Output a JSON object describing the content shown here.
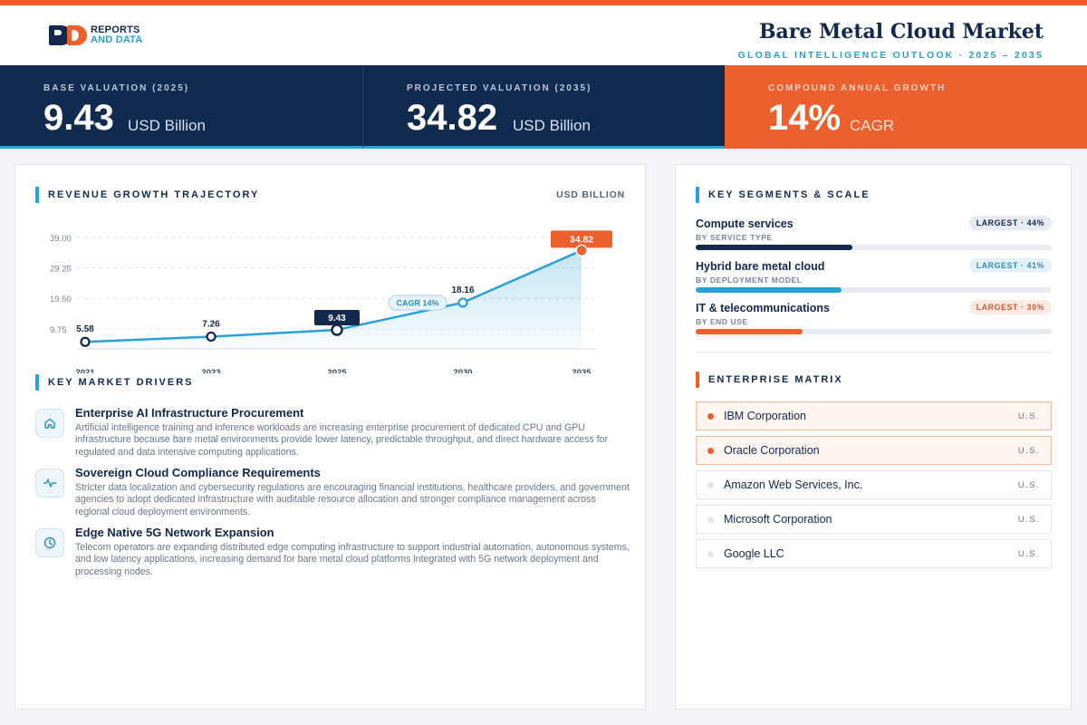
{
  "brand": {
    "line1": "REPORTS",
    "line2": "AND DATA"
  },
  "header": {
    "title": "Bare Metal Cloud Market",
    "subtitle": "GLOBAL INTELLIGENCE OUTLOOK  ·  2025 – 2035"
  },
  "kpis": [
    {
      "label": "BASE VALUATION (2025)",
      "value": "9.43",
      "unit": "USD Billion"
    },
    {
      "label": "PROJECTED VALUATION (2035)",
      "value": "34.82",
      "unit": "USD Billion"
    },
    {
      "label": "COMPOUND ANNUAL GROWTH",
      "value": "14%",
      "unit": "CAGR"
    }
  ],
  "trajectory": {
    "title": "REVENUE GROWTH TRAJECTORY",
    "unit_label": "USD BILLION"
  },
  "chart_data": {
    "type": "line",
    "x": [
      "2021",
      "2023",
      "2025",
      "2030",
      "2035"
    ],
    "values": [
      5.58,
      7.26,
      9.43,
      18.16,
      34.82
    ],
    "value_labels": [
      "5.58",
      "7.26",
      "9.43",
      "18.16",
      "34.82"
    ],
    "y_ticks": [
      9.75,
      19.5,
      29.25,
      39.0
    ],
    "y_tick_labels": [
      "9.75",
      "19.50",
      "29.25",
      "39.00"
    ],
    "ylim": [
      0,
      39.0
    ],
    "annotation": "CAGR 14%",
    "grid": true,
    "colors": {
      "line": "#2aa0d8",
      "highlight": "#ee5f2e",
      "base": "#13284d"
    }
  },
  "drivers": {
    "title": "KEY MARKET DRIVERS",
    "items": [
      {
        "icon": "home-icon",
        "title": "Enterprise AI Infrastructure Procurement",
        "desc": "Artificial intelligence training and inference workloads are increasing enterprise procurement of dedicated CPU and GPU infrastructure because bare metal environments provide lower latency, predictable throughput, and direct hardware access for regulated and data intensive computing applications."
      },
      {
        "icon": "activity-icon",
        "title": "Sovereign Cloud Compliance Requirements",
        "desc": "Stricter data localization and cybersecurity regulations are encouraging financial institutions, healthcare providers, and government agencies to adopt dedicated infrastructure with auditable resource allocation and stronger compliance management across regional cloud deployment environments."
      },
      {
        "icon": "clock-icon",
        "title": "Edge Native 5G Network Expansion",
        "desc": "Telecom operators are expanding distributed edge computing infrastructure to support industrial automation, autonomous systems, and low latency applications, increasing demand for bare metal cloud platforms integrated with 5G network deployment and processing nodes."
      }
    ]
  },
  "segments": {
    "title": "KEY SEGMENTS & SCALE",
    "items": [
      {
        "name": "Compute services",
        "sub": "BY SERVICE TYPE",
        "badge": "LARGEST · 44%",
        "share": 0.44,
        "color": "#13284d",
        "badge_bg": "#e8ecf2",
        "badge_fg": "#13284d"
      },
      {
        "name": "Hybrid bare metal cloud",
        "sub": "BY DEPLOYMENT MODEL",
        "badge": "LARGEST · 41%",
        "share": 0.41,
        "color": "#2aa0d8",
        "badge_bg": "#e3f2fa",
        "badge_fg": "#2a8fc4"
      },
      {
        "name": "IT & telecommunications",
        "sub": "BY END USE",
        "badge": "LARGEST · 30%",
        "share": 0.3,
        "color": "#ee5f2e",
        "badge_bg": "#fdebe3",
        "badge_fg": "#e0582b"
      }
    ]
  },
  "matrix": {
    "title": "ENTERPRISE MATRIX",
    "items": [
      {
        "name": "IBM Corporation",
        "country": "U.S.",
        "highlight": true
      },
      {
        "name": "Oracle Corporation",
        "country": "U.S.",
        "highlight": true
      },
      {
        "name": "Amazon Web Services, Inc.",
        "country": "U.S.",
        "highlight": false
      },
      {
        "name": "Microsoft Corporation",
        "country": "U.S.",
        "highlight": false
      },
      {
        "name": "Google LLC",
        "country": "U.S.",
        "highlight": false
      }
    ]
  }
}
